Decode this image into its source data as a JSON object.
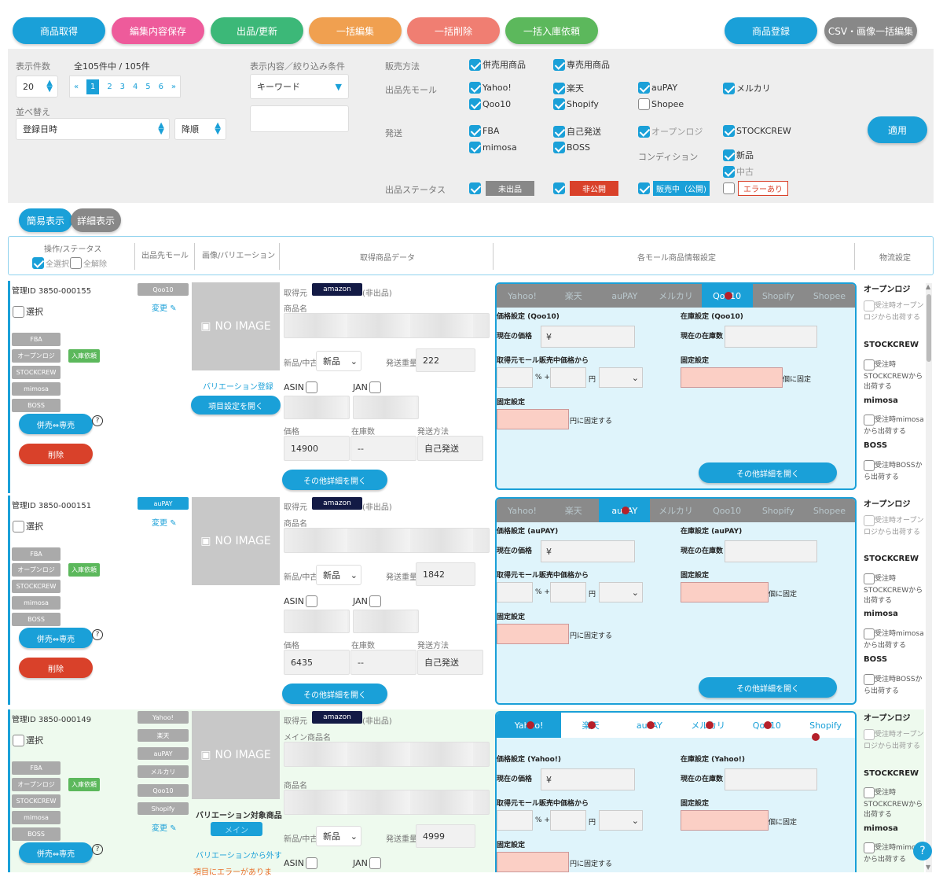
{
  "toolbar": {
    "get": "商品取得",
    "save": "編集内容保存",
    "publish": "出品/更新",
    "bulk_edit": "一括編集",
    "bulk_delete": "一括削除",
    "bulk_stock": "一括入庫依頼",
    "register": "商品登録",
    "csv": "CSV・画像一括編集",
    "colors": {
      "blue": "#1aa0d8",
      "pink": "#ee5b9b",
      "green": "#3cb878",
      "orange": "#f0a050",
      "salmon": "#f07e72",
      "lgreen": "#5cb85c",
      "gray": "#888888"
    }
  },
  "filter": {
    "count_label": "表示件数",
    "total_label": "全105件中 / 105件",
    "per_page": "20",
    "pages": [
      "«",
      "1",
      "2",
      "3",
      "4",
      "5",
      "6",
      "»"
    ],
    "sort_label": "並べ替え",
    "sort_field": "登録日時",
    "sort_order": "降順",
    "cond_label": "表示内容／絞り込み条件",
    "keyword": "キーワード",
    "sales_label": "販売方法",
    "sales": [
      "併売用商品",
      "専売用商品"
    ],
    "mall_label": "出品先モール",
    "malls": [
      "Yahoo!",
      "楽天",
      "auPAY",
      "メルカリ",
      "Qoo10",
      "Shopify",
      "Shopee"
    ],
    "ship_label": "発送",
    "ships": [
      "FBA",
      "自己発送",
      "オープンロジ",
      "STOCKCREW",
      "mimosa",
      "BOSS"
    ],
    "cond2_label": "コンディション",
    "conds": [
      "新品",
      "中古"
    ],
    "status_label": "出品ステータス",
    "statuses": [
      "未出品",
      "非公開",
      "販売中（公開)",
      "エラーあり"
    ],
    "apply": "適用"
  },
  "view": {
    "simple": "簡易表示",
    "detail": "詳細表示"
  },
  "headers": {
    "ops": "操作/ステータス",
    "select_all": "全選択",
    "deselect_all": "全解除",
    "mall": "出品先モール",
    "variation": "画像/バリエーション",
    "data": "取得商品データ",
    "mall_settings": "各モール商品情報設定",
    "logistics": "物流設定"
  },
  "common": {
    "select": "選択",
    "ship_tags": [
      "FBA",
      "オープンロジ",
      "STOCKCREW",
      "mimosa",
      "BOSS"
    ],
    "stock_req": "入庫依頼",
    "toggle": "併売⇔専売",
    "delete": "削除",
    "change": "変更",
    "no_image": "NO IMAGE",
    "source": "取得元",
    "amazon": "amazon",
    "non_listed": "(非出品)",
    "name": "商品名",
    "main_name": "メイン商品名",
    "condition": "新品/中古",
    "new": "新品",
    "weight": "発送重量",
    "asin": "ASIN",
    "jan": "JAN",
    "price": "価格",
    "stock": "在庫数",
    "ship_method": "発送方法",
    "self_ship": "自己発送",
    "dash": "--",
    "open_details": "その他詳細を開く",
    "var_register": "バリエーション登録",
    "open_item": "項目設定を開く",
    "var_target": "バリエーション対象商品",
    "main": "メイン",
    "var_remove": "バリエーションから外す",
    "item_error": "項目にエラーがありま"
  },
  "panel": {
    "tabs": [
      "Yahoo!",
      "楽天",
      "auPAY",
      "メルカリ",
      "Qoo10",
      "Shopify",
      "Shopee"
    ],
    "current_price": "現在の価格",
    "yen_mark": "¥",
    "current_stock": "現在の在庫数",
    "from_mall": "取得元モール販売中価格から",
    "pct": "% +",
    "yen": "円",
    "fixed": "固定設定",
    "fixed_count": "個に固定",
    "fixed_price": "円に固定する"
  },
  "logistics": {
    "openlogi": "オープンロジ",
    "openlogi_txt": "受注時オープンロジから出荷する",
    "stockcrew": "STOCKCREW",
    "stockcrew_txt": "受注時STOCKCREWから出荷する",
    "mimosa": "mimosa",
    "mimosa_txt": "受注時mimosaから出荷する",
    "boss": "BOSS",
    "boss_txt": "受注時BOSSから出荷する"
  },
  "products": [
    {
      "id": "管理ID 3850-000155",
      "malls": [
        "Qoo10"
      ],
      "weight": "222",
      "price": "14900",
      "active_tab": "Qoo10",
      "price_title": "価格設定 (Qoo10)",
      "stock_title": "在庫設定 (Qoo10)"
    },
    {
      "id": "管理ID 3850-000151",
      "malls": [
        "auPAY"
      ],
      "weight": "1842",
      "price": "6435",
      "active_tab": "auPAY",
      "price_title": "価格設定 (auPAY)",
      "stock_title": "在庫設定 (auPAY)"
    },
    {
      "id": "管理ID 3850-000149",
      "malls": [
        "Yahoo!",
        "楽天",
        "auPAY",
        "メルカリ",
        "Qoo10",
        "Shopify"
      ],
      "weight": "4999",
      "active_tab": "Yahoo!",
      "price_title": "価格設定 (Yahoo!)",
      "stock_title": "在庫設定 (Yahoo!)"
    }
  ]
}
